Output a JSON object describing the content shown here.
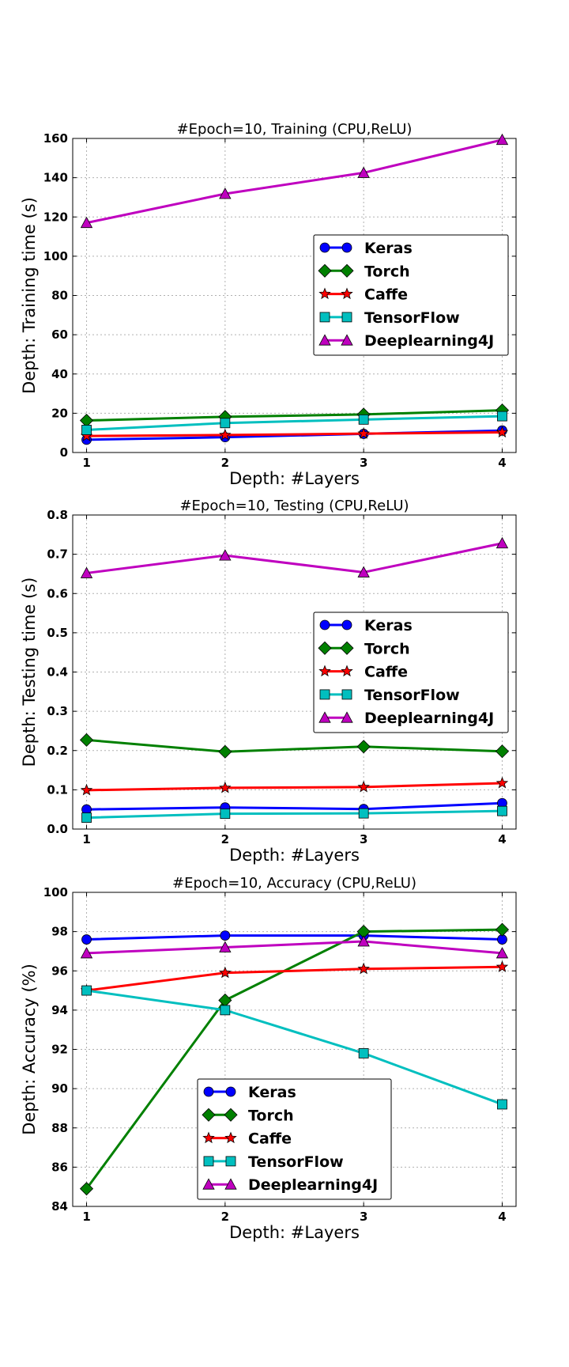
{
  "chart_data": [
    {
      "type": "line",
      "title": "#Epoch=10, Training (CPU,ReLU)",
      "xlabel": "Depth: #Layers",
      "ylabel": "Depth: Training time (s)",
      "x": [
        1,
        2,
        3,
        4
      ],
      "xticks": [
        "1",
        "2",
        "3",
        "4"
      ],
      "xlim": [
        0.9,
        4.1
      ],
      "ylim": [
        0,
        160
      ],
      "yticks": [
        "0",
        "20",
        "40",
        "60",
        "80",
        "100",
        "120",
        "140",
        "160"
      ],
      "grid": true,
      "legend_position": "center-right",
      "series": [
        {
          "name": "Keras",
          "values": [
            6.5,
            7.8,
            9.5,
            11.2
          ],
          "color": "#0000ff",
          "marker": "circle"
        },
        {
          "name": "Torch",
          "values": [
            16.3,
            18.2,
            19.4,
            21.5
          ],
          "color": "#008000",
          "marker": "diamond"
        },
        {
          "name": "Caffe",
          "values": [
            8.4,
            8.9,
            9.6,
            10.3
          ],
          "color": "#ff0000",
          "marker": "star"
        },
        {
          "name": "TensorFlow",
          "values": [
            11.5,
            15.0,
            16.8,
            18.5
          ],
          "color": "#00bfbf",
          "marker": "square"
        },
        {
          "name": "Deeplearning4J",
          "values": [
            117.0,
            131.8,
            142.5,
            159.3
          ],
          "color": "#bf00bf",
          "marker": "triangle"
        }
      ]
    },
    {
      "type": "line",
      "title": "#Epoch=10, Testing (CPU,ReLU)",
      "xlabel": "Depth: #Layers",
      "ylabel": "Depth: Testing time (s)",
      "x": [
        1,
        2,
        3,
        4
      ],
      "xticks": [
        "1",
        "2",
        "3",
        "4"
      ],
      "xlim": [
        0.9,
        4.1
      ],
      "ylim": [
        0,
        0.8
      ],
      "yticks": [
        "0.0",
        "0.1",
        "0.2",
        "0.3",
        "0.4",
        "0.5",
        "0.6",
        "0.7",
        "0.8"
      ],
      "grid": true,
      "legend_position": "center-right",
      "series": [
        {
          "name": "Keras",
          "values": [
            0.05,
            0.055,
            0.051,
            0.066
          ],
          "color": "#0000ff",
          "marker": "circle"
        },
        {
          "name": "Torch",
          "values": [
            0.227,
            0.197,
            0.21,
            0.198
          ],
          "color": "#008000",
          "marker": "diamond"
        },
        {
          "name": "Caffe",
          "values": [
            0.099,
            0.105,
            0.107,
            0.117
          ],
          "color": "#ff0000",
          "marker": "star"
        },
        {
          "name": "TensorFlow",
          "values": [
            0.029,
            0.039,
            0.04,
            0.046
          ],
          "color": "#00bfbf",
          "marker": "square"
        },
        {
          "name": "Deeplearning4J",
          "values": [
            0.652,
            0.697,
            0.654,
            0.728
          ],
          "color": "#bf00bf",
          "marker": "triangle"
        }
      ]
    },
    {
      "type": "line",
      "title": "#Epoch=10, Accuracy (CPU,ReLU)",
      "xlabel": "Depth: #Layers",
      "ylabel": "Depth: Accuracy (%)",
      "x": [
        1,
        2,
        3,
        4
      ],
      "xticks": [
        "1",
        "2",
        "3",
        "4"
      ],
      "xlim": [
        0.9,
        4.1
      ],
      "ylim": [
        84,
        100
      ],
      "yticks": [
        "84",
        "86",
        "88",
        "90",
        "92",
        "94",
        "96",
        "98",
        "100"
      ],
      "grid": true,
      "legend_position": "lower-center",
      "series": [
        {
          "name": "Keras",
          "values": [
            97.6,
            97.8,
            97.8,
            97.6
          ],
          "color": "#0000ff",
          "marker": "circle"
        },
        {
          "name": "Torch",
          "values": [
            84.9,
            94.5,
            98.0,
            98.1
          ],
          "color": "#008000",
          "marker": "diamond"
        },
        {
          "name": "Caffe",
          "values": [
            95.0,
            95.9,
            96.1,
            96.2
          ],
          "color": "#ff0000",
          "marker": "star"
        },
        {
          "name": "TensorFlow",
          "values": [
            95.0,
            94.0,
            91.8,
            89.2
          ],
          "color": "#00bfbf",
          "marker": "square"
        },
        {
          "name": "Deeplearning4J",
          "values": [
            96.9,
            97.2,
            97.5,
            96.9
          ],
          "color": "#bf00bf",
          "marker": "triangle"
        }
      ]
    }
  ]
}
